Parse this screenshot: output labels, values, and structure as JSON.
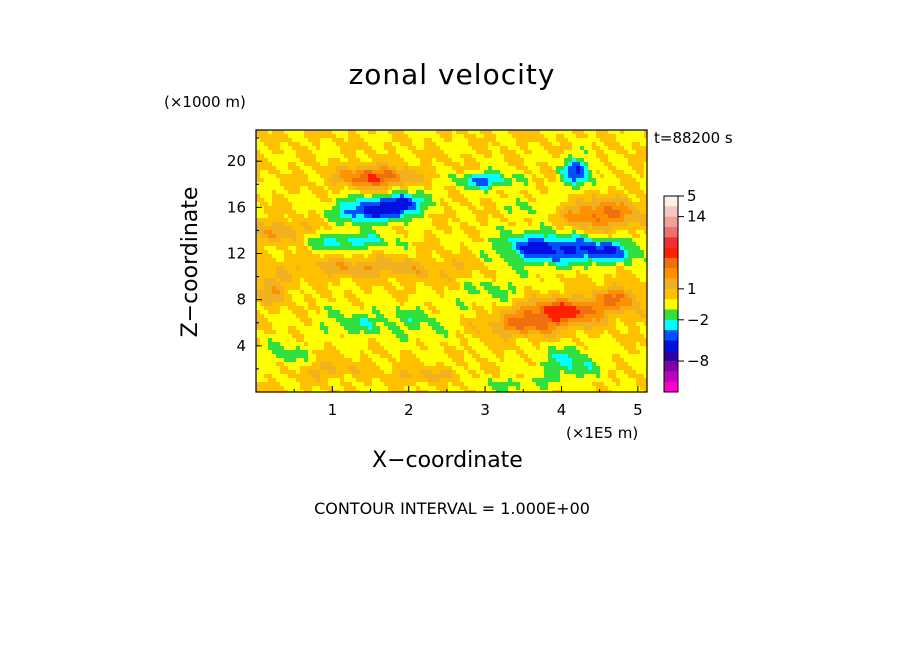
{
  "chart_data": {
    "type": "heatmap",
    "title": "zonal velocity",
    "xlabel": "X−coordinate",
    "ylabel": "Z−coordinate",
    "x_unit": "(×1E5 m)",
    "y_unit": "(×1000 m)",
    "time_label": "t=88200 s",
    "contour_interval_text": "CONTOUR INTERVAL = 1.000E+00",
    "xlim": [
      0,
      5.12
    ],
    "ylim": [
      0,
      22.7
    ],
    "x_ticks": [
      1,
      2,
      3,
      4,
      5
    ],
    "y_ticks": [
      4,
      8,
      12,
      16,
      20
    ],
    "x_tick_labels": [
      "1",
      "2",
      "3",
      "4",
      "5"
    ],
    "y_tick_labels": [
      "4",
      "8",
      "12",
      "16",
      "20"
    ],
    "colorbar": {
      "tick_labels": [
        "14",
        "5",
        "1",
        "−2",
        "−8"
      ],
      "tick_values": [
        14,
        5,
        1,
        -2,
        -8
      ],
      "bins": [
        {
          "max": 18,
          "color": "#fff0e8"
        },
        {
          "max": 16,
          "color": "#f6c8c4"
        },
        {
          "max": 14,
          "color": "#f4a09a"
        },
        {
          "max": 12,
          "color": "#f07070"
        },
        {
          "max": 10,
          "color": "#ee3030"
        },
        {
          "max": 6,
          "color": "#ff2000"
        },
        {
          "max": 4,
          "color": "#f07010"
        },
        {
          "max": 3,
          "color": "#ff9000"
        },
        {
          "max": 2,
          "color": "#f0b020"
        },
        {
          "max": 1,
          "color": "#ffc000"
        },
        {
          "max": 0,
          "color": "#ffff00"
        },
        {
          "max": -1,
          "color": "#30e040"
        },
        {
          "max": -2,
          "color": "#00ffff"
        },
        {
          "max": -3,
          "color": "#0050ff"
        },
        {
          "max": -4,
          "color": "#0010e0"
        },
        {
          "max": -6,
          "color": "#3000a0"
        },
        {
          "max": -8,
          "color": "#8000a0"
        },
        {
          "max": -10,
          "color": "#c000c0"
        },
        {
          "max": -12,
          "color": "#ff00c8"
        }
      ]
    },
    "field_features": [
      {
        "x": 1.5,
        "z": 15.7,
        "sx": 0.45,
        "sz": 1.1,
        "v": -4.6
      },
      {
        "x": 1.95,
        "z": 16.4,
        "sx": 0.25,
        "sz": 0.9,
        "v": -4.0
      },
      {
        "x": 3.7,
        "z": 12.5,
        "sx": 0.5,
        "sz": 1.4,
        "v": -4.2
      },
      {
        "x": 4.5,
        "z": 12.2,
        "sx": 0.5,
        "sz": 1.1,
        "v": -4.0
      },
      {
        "x": 4.2,
        "z": 19.0,
        "sx": 0.2,
        "sz": 1.3,
        "v": -3.8
      },
      {
        "x": 3.0,
        "z": 18.3,
        "sx": 0.35,
        "sz": 0.7,
        "v": -3.5
      },
      {
        "x": 1.2,
        "z": 13.0,
        "sx": 0.6,
        "sz": 0.8,
        "v": -2.6
      },
      {
        "x": 0.4,
        "z": 3.2,
        "sx": 0.3,
        "sz": 1.2,
        "v": -1.5
      },
      {
        "x": 1.3,
        "z": 6.0,
        "sx": 0.5,
        "sz": 1.3,
        "v": -1.4
      },
      {
        "x": 4.1,
        "z": 2.5,
        "sx": 0.4,
        "sz": 1.5,
        "v": -2.2
      },
      {
        "x": 3.3,
        "z": 0.6,
        "sx": 0.5,
        "sz": 0.7,
        "v": -1.3
      },
      {
        "x": 1.55,
        "z": 18.6,
        "sx": 0.45,
        "sz": 0.9,
        "v": 4.2
      },
      {
        "x": 4.5,
        "z": 15.4,
        "sx": 0.55,
        "sz": 1.3,
        "v": 3.4
      },
      {
        "x": 4.0,
        "z": 7.0,
        "sx": 0.6,
        "sz": 1.1,
        "v": 4.6
      },
      {
        "x": 3.5,
        "z": 5.7,
        "sx": 0.5,
        "sz": 0.9,
        "v": 2.8
      },
      {
        "x": 4.75,
        "z": 8.2,
        "sx": 0.3,
        "sz": 1.0,
        "v": 2.8
      },
      {
        "x": 1.4,
        "z": 10.8,
        "sx": 0.9,
        "sz": 0.9,
        "v": 1.8
      },
      {
        "x": 0.35,
        "z": 13.8,
        "sx": 0.35,
        "sz": 1.0,
        "v": 2.2
      },
      {
        "x": 0.2,
        "z": 9.0,
        "sx": 0.25,
        "sz": 1.4,
        "v": 1.7
      },
      {
        "x": 2.2,
        "z": 1.4,
        "sx": 0.5,
        "sz": 0.6,
        "v": 1.3
      },
      {
        "x": 0.9,
        "z": 2.0,
        "sx": 0.4,
        "sz": 0.7,
        "v": 1.4
      },
      {
        "x": 3.7,
        "z": 16.0,
        "sx": 0.45,
        "sz": 0.9,
        "v": -1.4
      },
      {
        "x": 2.6,
        "z": 10.3,
        "sx": 0.6,
        "sz": 1.0,
        "v": 0.8
      },
      {
        "x": 3.1,
        "z": 8.8,
        "sx": 0.5,
        "sz": 1.6,
        "v": -1.3
      },
      {
        "x": 2.1,
        "z": 6.0,
        "sx": 0.5,
        "sz": 1.6,
        "v": -1.2
      }
    ]
  }
}
